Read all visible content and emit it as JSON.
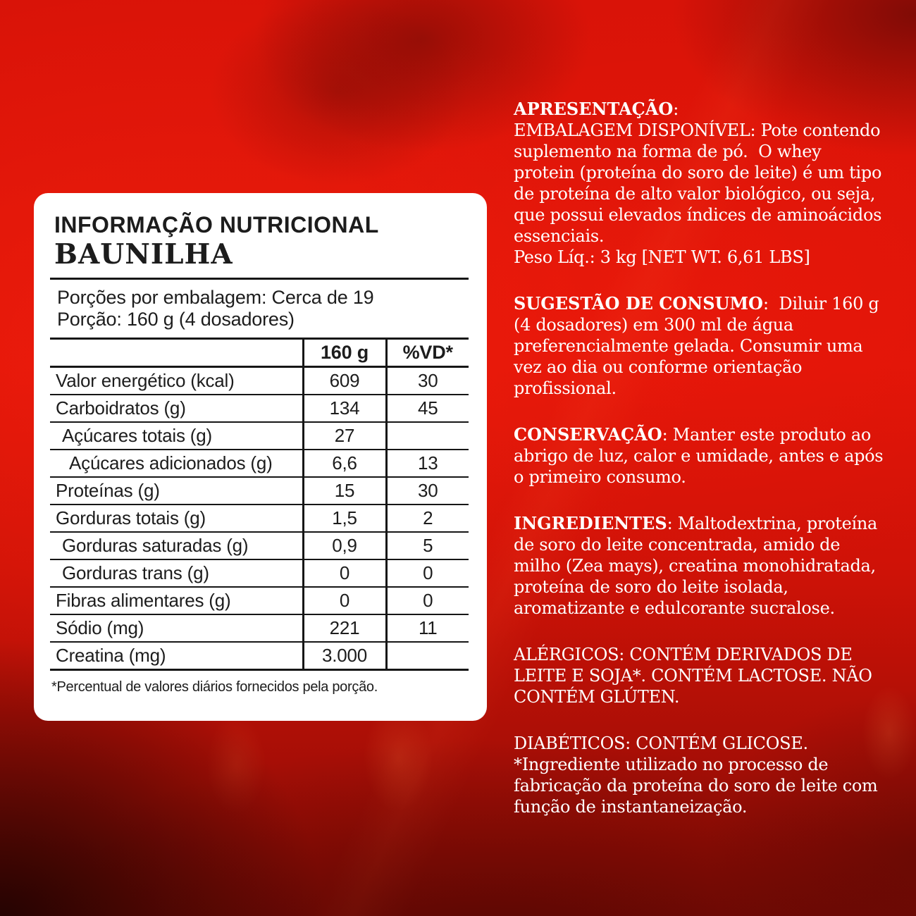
{
  "colors": {
    "background_red": "#e01408",
    "background_dark_red": "#840b04",
    "card_white": "#ffffff",
    "text_black": "#1c1c1c",
    "text_white": "#ffffff"
  },
  "card": {
    "title": "INFORMAÇÃO NUTRICIONAL",
    "flavor": "BAUNILHA",
    "servings": "Porções por embalagem: Cerca de 19\nPorção: 160 g (4 dosadores)",
    "footnote": "*Percentual de valores diários fornecidos pela porção.",
    "table": {
      "columns": [
        "",
        "160 g",
        "%VD*"
      ],
      "rows": [
        {
          "label": "Valor energético (kcal)",
          "amount": "609",
          "vd": "30"
        },
        {
          "label": "Carboidratos (g)",
          "amount": "134",
          "vd": "45"
        },
        {
          "label": "Açúcares totais (g)",
          "amount": "27",
          "vd": ""
        },
        {
          "label": "Açúcares adicionados (g)",
          "amount": "6,6",
          "vd": "13"
        },
        {
          "label": "Proteínas (g)",
          "amount": "15",
          "vd": "30"
        },
        {
          "label": "Gorduras totais (g)",
          "amount": "1,5",
          "vd": "2"
        },
        {
          "label": "Gorduras saturadas (g)",
          "amount": "0,9",
          "vd": "5"
        },
        {
          "label": "Gorduras trans (g)",
          "amount": "0",
          "vd": "0"
        },
        {
          "label": "Fibras alimentares (g)",
          "amount": "0",
          "vd": "0"
        },
        {
          "label": "Sódio (mg)",
          "amount": "221",
          "vd": "11"
        },
        {
          "label": "Creatina (mg)",
          "amount": "3.000",
          "vd": ""
        }
      ]
    }
  },
  "right_panel": {
    "sections": [
      {
        "heading": "APRESENTAÇÃO",
        "body": ":\nEMBALAGEM DISPONÍVEL: Pote contendo\nsuplemento na forma de pó.  O whey\nprotein (proteína do soro de leite) é um tipo\nde proteína de alto valor biológico, ou seja,\nque possui elevados índices de aminoácidos\nessenciais.\nPeso Líq.: 3 kg [NET WT. 6,61 LBS]"
      },
      {
        "heading": "SUGESTÃO DE CONSUMO",
        "body": ":  Diluir 160 g\n(4 dosadores) em 300 ml de água\npreferencialmente gelada. Consumir uma\nvez ao dia ou conforme orientação\nprofissional."
      },
      {
        "heading": "CONSERVAÇÃO",
        "body": ": Manter este produto ao\nabrigo de luz, calor e umidade, antes e após\no primeiro consumo."
      },
      {
        "heading": "INGREDIENTES",
        "body": ": Maltodextrina, proteína\nde soro do leite concentrada, amido de\nmilho (Zea mays), creatina monohidratada,\nproteína de soro do leite isolada,\naromatizante e edulcorante sucralose."
      },
      {
        "heading": "",
        "body": "ALÉRGICOS: CONTÉM DERIVADOS DE\nLEITE E SOJA*. CONTÉM LACTOSE. NÃO\nCONTÉM GLÚTEN."
      },
      {
        "heading": "",
        "body": "DIABÉTICOS: CONTÉM GLICOSE.\n*Ingrediente utilizado no processo de\nfabricação da proteína do soro de leite com\nfunção de instantaneização."
      }
    ]
  }
}
